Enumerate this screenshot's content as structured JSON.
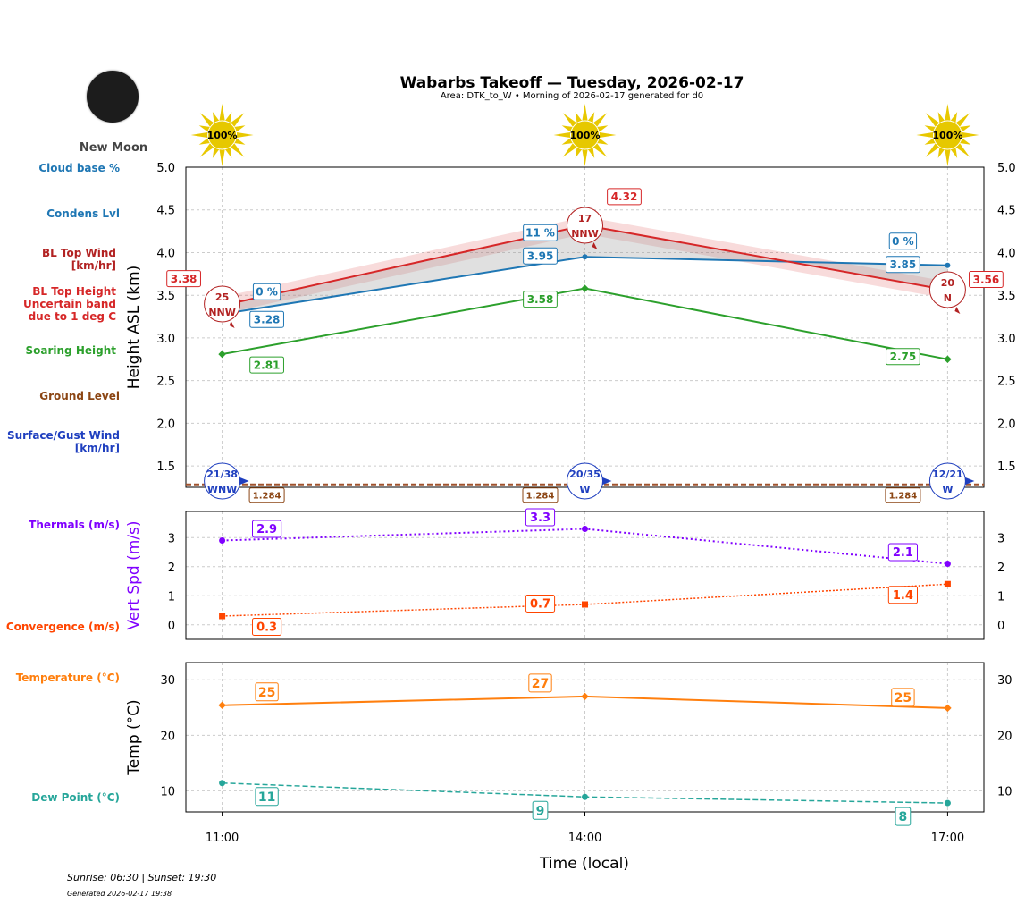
{
  "title": "Wabarbs Takeoff — Tuesday, 2026-02-17",
  "subtitle": "Area: DTK_to_W • Morning of 2026-02-17 generated for d0",
  "moon": {
    "phase": "New Moon"
  },
  "sun_coverage": [
    "100%",
    "100%",
    "100%"
  ],
  "left_labels": {
    "cloud_base": "Cloud base %",
    "condens": "Condens Lvl",
    "bl_wind": "BL Top Wind [km/hr]",
    "bl_top": "BL Top Height Uncertain band due to 1 deg C",
    "soaring": "Soaring Height",
    "ground": "Ground Level",
    "surface_wind": "Surface/Gust Wind [km/hr]",
    "thermals": "Thermals (m/s)",
    "convergence": "Convergence (m/s)",
    "temperature": "Temperature (°C)",
    "dewpoint": "Dew Point (°C)"
  },
  "footer": {
    "sun": "Sunrise: 06:30 | Sunset: 19:30",
    "generated": "Generated 2026-02-17 19:38"
  },
  "colors": {
    "cl": "#1f77b4",
    "bl": "#d62728",
    "bl_wind": "#b22222",
    "soar": "#2ca02c",
    "ground": "#8b4513",
    "surf": "#1f3fbf",
    "therm": "#8000ff",
    "conv": "#ff4500",
    "temp": "#ff7f0e",
    "dew": "#26a69a"
  },
  "chart_data": [
    {
      "type": "line",
      "ylabel": "Height ASL (km)",
      "ylim": [
        1.25,
        5.0
      ],
      "yticks": [
        "1.5",
        "2.0",
        "2.5",
        "3.0",
        "3.5",
        "4.0",
        "4.5",
        "5.0"
      ],
      "x": [
        "11:00",
        "14:00",
        "17:00"
      ],
      "grid": true,
      "series": [
        {
          "key": "cl",
          "values": [
            3.28,
            3.95,
            3.85
          ],
          "labels": [
            "3.28",
            "3.95",
            "3.85"
          ]
        },
        {
          "key": "cloud_pct",
          "labels": [
            "0 %",
            "11 %",
            "0 %"
          ]
        },
        {
          "key": "bl",
          "values": [
            3.38,
            4.32,
            3.56
          ],
          "labels": [
            "3.38",
            "4.32",
            "3.56"
          ],
          "band": 0.1
        },
        {
          "key": "soar",
          "values": [
            2.81,
            3.58,
            2.75
          ],
          "labels": [
            "2.81",
            "3.58",
            "2.75"
          ]
        },
        {
          "key": "ground",
          "values": [
            1.284,
            1.284,
            1.284
          ],
          "labels": [
            "1.284",
            "1.284",
            "1.284"
          ]
        }
      ],
      "bl_wind": [
        {
          "speed": "25",
          "dir": "NNW"
        },
        {
          "speed": "17",
          "dir": "NNW"
        },
        {
          "speed": "20",
          "dir": "N"
        }
      ],
      "surface_wind": [
        {
          "speed": "21/38",
          "dir": "WNW"
        },
        {
          "speed": "20/35",
          "dir": "W"
        },
        {
          "speed": "12/21",
          "dir": "W"
        }
      ]
    },
    {
      "type": "line",
      "ylabel": "Vert Spd (m/s)",
      "ylim": [
        -0.5,
        3.9
      ],
      "yticks": [
        "0",
        "1",
        "2",
        "3"
      ],
      "x": [
        "11:00",
        "14:00",
        "17:00"
      ],
      "series": [
        {
          "key": "therm",
          "values": [
            2.9,
            3.3,
            2.1
          ],
          "labels": [
            "2.9",
            "3.3",
            "2.1"
          ]
        },
        {
          "key": "conv",
          "values": [
            0.3,
            0.7,
            1.4
          ],
          "labels": [
            "0.3",
            "0.7",
            "1.4"
          ]
        }
      ]
    },
    {
      "type": "line",
      "ylabel": "Temp (°C)",
      "xlabel": "Time (local)",
      "ylim": [
        6.2,
        33.1
      ],
      "yticks": [
        "10",
        "20",
        "30"
      ],
      "x": [
        "11:00",
        "14:00",
        "17:00"
      ],
      "series": [
        {
          "key": "temp",
          "values": [
            25.4,
            27.0,
            24.9
          ],
          "labels": [
            "25",
            "27",
            "25"
          ]
        },
        {
          "key": "dew",
          "values": [
            11.4,
            8.9,
            7.8
          ],
          "labels": [
            "11",
            "9",
            "8"
          ]
        }
      ]
    }
  ]
}
